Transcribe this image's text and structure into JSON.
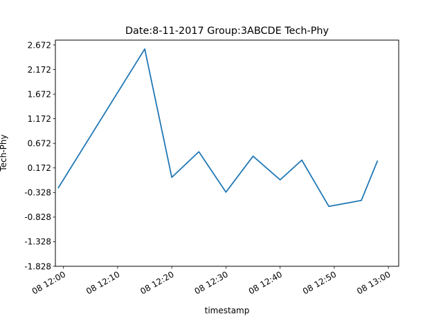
{
  "chart_data": {
    "type": "line",
    "title": "Date:8-11-2017 Group:3ABCDE Tech-Phy",
    "xlabel": "timestamp",
    "ylabel": "Tech-Phy",
    "x_tick_labels": [
      "08 12:00",
      "08 12:10",
      "08 12:20",
      "08 12:30",
      "08 12:40",
      "08 12:50",
      "08 13:00"
    ],
    "y_tick_labels": [
      "-1.828",
      "-1.328",
      "-0.828",
      "-0.328",
      "0.172",
      "0.672",
      "1.172",
      "1.672",
      "2.172",
      "2.672"
    ],
    "y_ticks": [
      -1.828,
      -1.328,
      -0.828,
      -0.328,
      0.172,
      0.672,
      1.172,
      1.672,
      2.172,
      2.672
    ],
    "x_tick_minutes": [
      0,
      10,
      20,
      30,
      40,
      50,
      60
    ],
    "xlim": [
      "08 11:58.5",
      "08 13:01.9"
    ],
    "ylim": [
      -1.828,
      2.77
    ],
    "grid": false,
    "series": [
      {
        "color": "#1f77b4",
        "x": [
          "08 11:59",
          "08 12:15",
          "08 12:20",
          "08 12:25",
          "08 12:30",
          "08 12:35",
          "08 12:40",
          "08 12:44",
          "08 12:49",
          "08 12:55",
          "08 12:58"
        ],
        "x_minutes": [
          -1,
          15,
          20,
          25,
          30,
          35,
          40,
          44,
          49,
          55,
          58
        ],
        "values": [
          -0.24,
          2.59,
          -0.02,
          0.5,
          -0.32,
          0.41,
          -0.07,
          0.33,
          -0.61,
          -0.49,
          0.32
        ]
      }
    ]
  }
}
